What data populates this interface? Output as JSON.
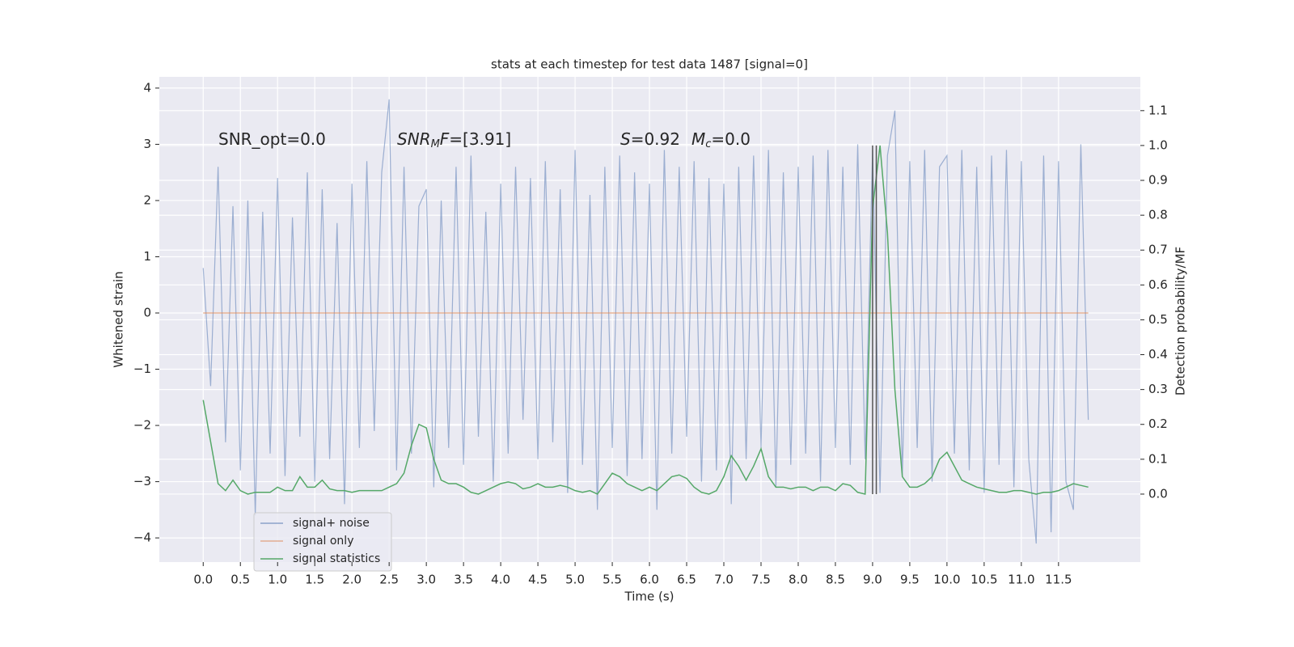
{
  "chart_data": {
    "type": "line",
    "title": "stats at each timestep for test data 1487 [signal=0]",
    "x_label": "Time (s)",
    "y_label": "Whitened strain",
    "y2_label": "Detection probability/MF",
    "x": [
      0,
      0.1,
      0.2,
      0.3,
      0.4,
      0.5,
      0.6,
      0.7,
      0.8,
      0.9,
      1,
      1.1,
      1.2,
      1.3,
      1.4,
      1.5,
      1.6,
      1.7,
      1.8,
      1.9,
      2,
      2.1,
      2.2,
      2.3,
      2.4,
      2.5,
      2.6,
      2.7,
      2.8,
      2.9,
      3,
      3.1,
      3.2,
      3.3,
      3.4,
      3.5,
      3.6,
      3.7,
      3.8,
      3.9,
      4,
      4.1,
      4.2,
      4.3,
      4.4,
      4.5,
      4.6,
      4.7,
      4.8,
      4.9,
      5,
      5.1,
      5.2,
      5.3,
      5.4,
      5.5,
      5.6,
      5.7,
      5.8,
      5.9,
      6,
      6.1,
      6.2,
      6.3,
      6.4,
      6.5,
      6.6,
      6.7,
      6.8,
      6.9,
      7,
      7.1,
      7.2,
      7.3,
      7.4,
      7.5,
      7.6,
      7.7,
      7.8,
      7.9,
      8,
      8.1,
      8.2,
      8.3,
      8.4,
      8.5,
      8.6,
      8.7,
      8.8,
      8.9,
      9,
      9.1,
      9.2,
      9.3,
      9.4,
      9.5,
      9.6,
      9.7,
      9.8,
      9.9,
      10,
      10.1,
      10.2,
      10.3,
      10.4,
      10.5,
      10.6,
      10.7,
      10.8,
      10.9,
      11,
      11.1,
      11.2,
      11.3,
      11.4,
      11.5,
      11.6,
      11.7,
      11.8,
      11.9
    ],
    "series": [
      {
        "name": "signal+ noise",
        "color": "#4c72b0",
        "axis": "y",
        "values": [
          0.8,
          -1.3,
          2.6,
          -2.3,
          1.9,
          -2.8,
          2.0,
          -3.6,
          1.8,
          -2.5,
          2.4,
          -2.9,
          1.7,
          -2.2,
          2.5,
          -3.0,
          2.2,
          -2.6,
          1.6,
          -3.4,
          2.3,
          -2.4,
          2.7,
          -2.1,
          2.5,
          3.8,
          -2.8,
          2.6,
          -2.5,
          1.9,
          2.2,
          -3.1,
          2.0,
          -2.4,
          2.6,
          -2.7,
          2.8,
          -2.2,
          1.8,
          -3.0,
          2.3,
          -2.5,
          2.6,
          -1.9,
          2.4,
          -2.6,
          2.7,
          -2.3,
          2.2,
          -3.2,
          2.9,
          -2.7,
          2.1,
          -3.5,
          2.6,
          -2.4,
          2.8,
          -2.9,
          2.5,
          -2.6,
          2.3,
          -3.5,
          2.9,
          -2.5,
          2.6,
          -2.2,
          2.7,
          -3.0,
          2.4,
          -2.8,
          2.3,
          -3.4,
          2.6,
          -2.6,
          2.8,
          -2.4,
          2.9,
          -3.1,
          2.5,
          -2.7,
          2.6,
          -2.5,
          2.8,
          -3.0,
          2.9,
          -2.4,
          2.6,
          -2.7,
          3.0,
          -2.6,
          2.9,
          -3.2,
          2.8,
          3.6,
          -2.9,
          2.7,
          -2.4,
          2.9,
          -3.0,
          2.6,
          2.8,
          -2.5,
          2.9,
          -2.8,
          2.6,
          -3.2,
          2.8,
          -2.7,
          2.9,
          -3.1,
          2.7,
          -2.6,
          -4.1,
          2.8,
          -3.9,
          2.7,
          -3.0,
          -3.5,
          3.0,
          -1.9
        ]
      },
      {
        "name": "signal only",
        "color": "#dd8452",
        "axis": "y",
        "values": [
          0,
          0,
          0,
          0,
          0,
          0,
          0,
          0,
          0,
          0,
          0,
          0,
          0,
          0,
          0,
          0,
          0,
          0,
          0,
          0,
          0,
          0,
          0,
          0,
          0,
          0,
          0,
          0,
          0,
          0,
          0,
          0,
          0,
          0,
          0,
          0,
          0,
          0,
          0,
          0,
          0,
          0,
          0,
          0,
          0,
          0,
          0,
          0,
          0,
          0,
          0,
          0,
          0,
          0,
          0,
          0,
          0,
          0,
          0,
          0,
          0,
          0,
          0,
          0,
          0,
          0,
          0,
          0,
          0,
          0,
          0,
          0,
          0,
          0,
          0,
          0,
          0,
          0,
          0,
          0,
          0,
          0,
          0,
          0,
          0,
          0,
          0,
          0,
          0,
          0,
          0,
          0,
          0,
          0,
          0,
          0,
          0,
          0,
          0,
          0,
          0,
          0,
          0,
          0,
          0,
          0,
          0,
          0,
          0,
          0,
          0,
          0,
          0,
          0,
          0,
          0,
          0,
          0,
          0,
          0
        ]
      },
      {
        "name": "signal statistics",
        "color": "#55a868",
        "axis": "y2",
        "values": [
          0.27,
          0.15,
          0.03,
          0.01,
          0.04,
          0.01,
          0.0,
          0.005,
          0.005,
          0.005,
          0.02,
          0.01,
          0.01,
          0.05,
          0.02,
          0.02,
          0.04,
          0.015,
          0.01,
          0.01,
          0.005,
          0.01,
          0.01,
          0.01,
          0.01,
          0.02,
          0.03,
          0.06,
          0.14,
          0.2,
          0.19,
          0.1,
          0.04,
          0.03,
          0.03,
          0.02,
          0.005,
          0.0,
          0.01,
          0.02,
          0.03,
          0.035,
          0.03,
          0.015,
          0.02,
          0.03,
          0.02,
          0.02,
          0.025,
          0.02,
          0.01,
          0.005,
          0.01,
          0.0,
          0.03,
          0.06,
          0.05,
          0.03,
          0.02,
          0.01,
          0.02,
          0.01,
          0.03,
          0.05,
          0.055,
          0.045,
          0.02,
          0.005,
          0.0,
          0.01,
          0.05,
          0.11,
          0.08,
          0.04,
          0.08,
          0.13,
          0.05,
          0.02,
          0.02,
          0.015,
          0.02,
          0.02,
          0.01,
          0.02,
          0.02,
          0.01,
          0.03,
          0.025,
          0.005,
          0.0,
          0.82,
          1.0,
          0.75,
          0.3,
          0.05,
          0.02,
          0.02,
          0.03,
          0.05,
          0.1,
          0.12,
          0.08,
          0.04,
          0.03,
          0.02,
          0.015,
          0.01,
          0.005,
          0.005,
          0.01,
          0.01,
          0.005,
          0.0,
          0.005,
          0.005,
          0.01,
          0.02,
          0.03,
          0.025,
          0.02
        ]
      }
    ],
    "vlines": {
      "x": [
        9.0,
        9.05
      ],
      "y2range": [
        0,
        1
      ],
      "color": "#555555"
    },
    "annotations": [
      [
        {
          "text": "SNR_opt=0.0"
        }
      ],
      [
        {
          "text": "SNR",
          "italic": true
        },
        {
          "text": "M",
          "italic": true,
          "sub": true
        },
        {
          "text": "F",
          "italic": true
        },
        {
          "text": "=[3.91]"
        }
      ],
      [
        {
          "text": "S",
          "italic": true
        },
        {
          "text": "=0.92"
        },
        {
          "text": "M",
          "italic": true
        },
        {
          "text": "c",
          "italic": true,
          "sub": true
        },
        {
          "text": "=0.0"
        }
      ]
    ],
    "xlim": [
      -0.59,
      12.6
    ],
    "ylim": [
      -4.43,
      4.2
    ],
    "y2lim": [
      -0.195,
      1.197
    ],
    "xticks": [
      {
        "value": 0,
        "label": "0.0"
      },
      0.5,
      {
        "value": 1,
        "label": "1.0"
      },
      1.5,
      {
        "value": 2,
        "label": "2.0"
      },
      2.5,
      {
        "value": 3,
        "label": "3.0"
      },
      3.5,
      {
        "value": 4,
        "label": "4.0"
      },
      4.5,
      {
        "value": 5,
        "label": "5.0"
      },
      5.5,
      {
        "value": 6,
        "label": "6.0"
      },
      6.5,
      {
        "value": 7,
        "label": "7.0"
      },
      7.5,
      {
        "value": 8,
        "label": "8.0"
      },
      8.5,
      {
        "value": 9,
        "label": "9.0"
      },
      9.5,
      {
        "value": 10,
        "label": "10.0"
      },
      10.5,
      {
        "value": 11,
        "label": "11.0"
      },
      11.5
    ],
    "yticks": [
      {
        "value": -4,
        "label": "−4"
      },
      {
        "value": -3,
        "label": "−3"
      },
      {
        "value": -2,
        "label": "−2"
      },
      {
        "value": -1,
        "label": "−1"
      },
      0,
      1,
      2,
      3,
      4
    ],
    "y2ticks": [
      {
        "value": 0,
        "label": "0.0"
      },
      0.1,
      0.2,
      0.3,
      0.4,
      0.5,
      0.6,
      0.7,
      0.8,
      0.9,
      {
        "value": 1,
        "label": "1.0"
      },
      1.1
    ],
    "grid": true
  }
}
